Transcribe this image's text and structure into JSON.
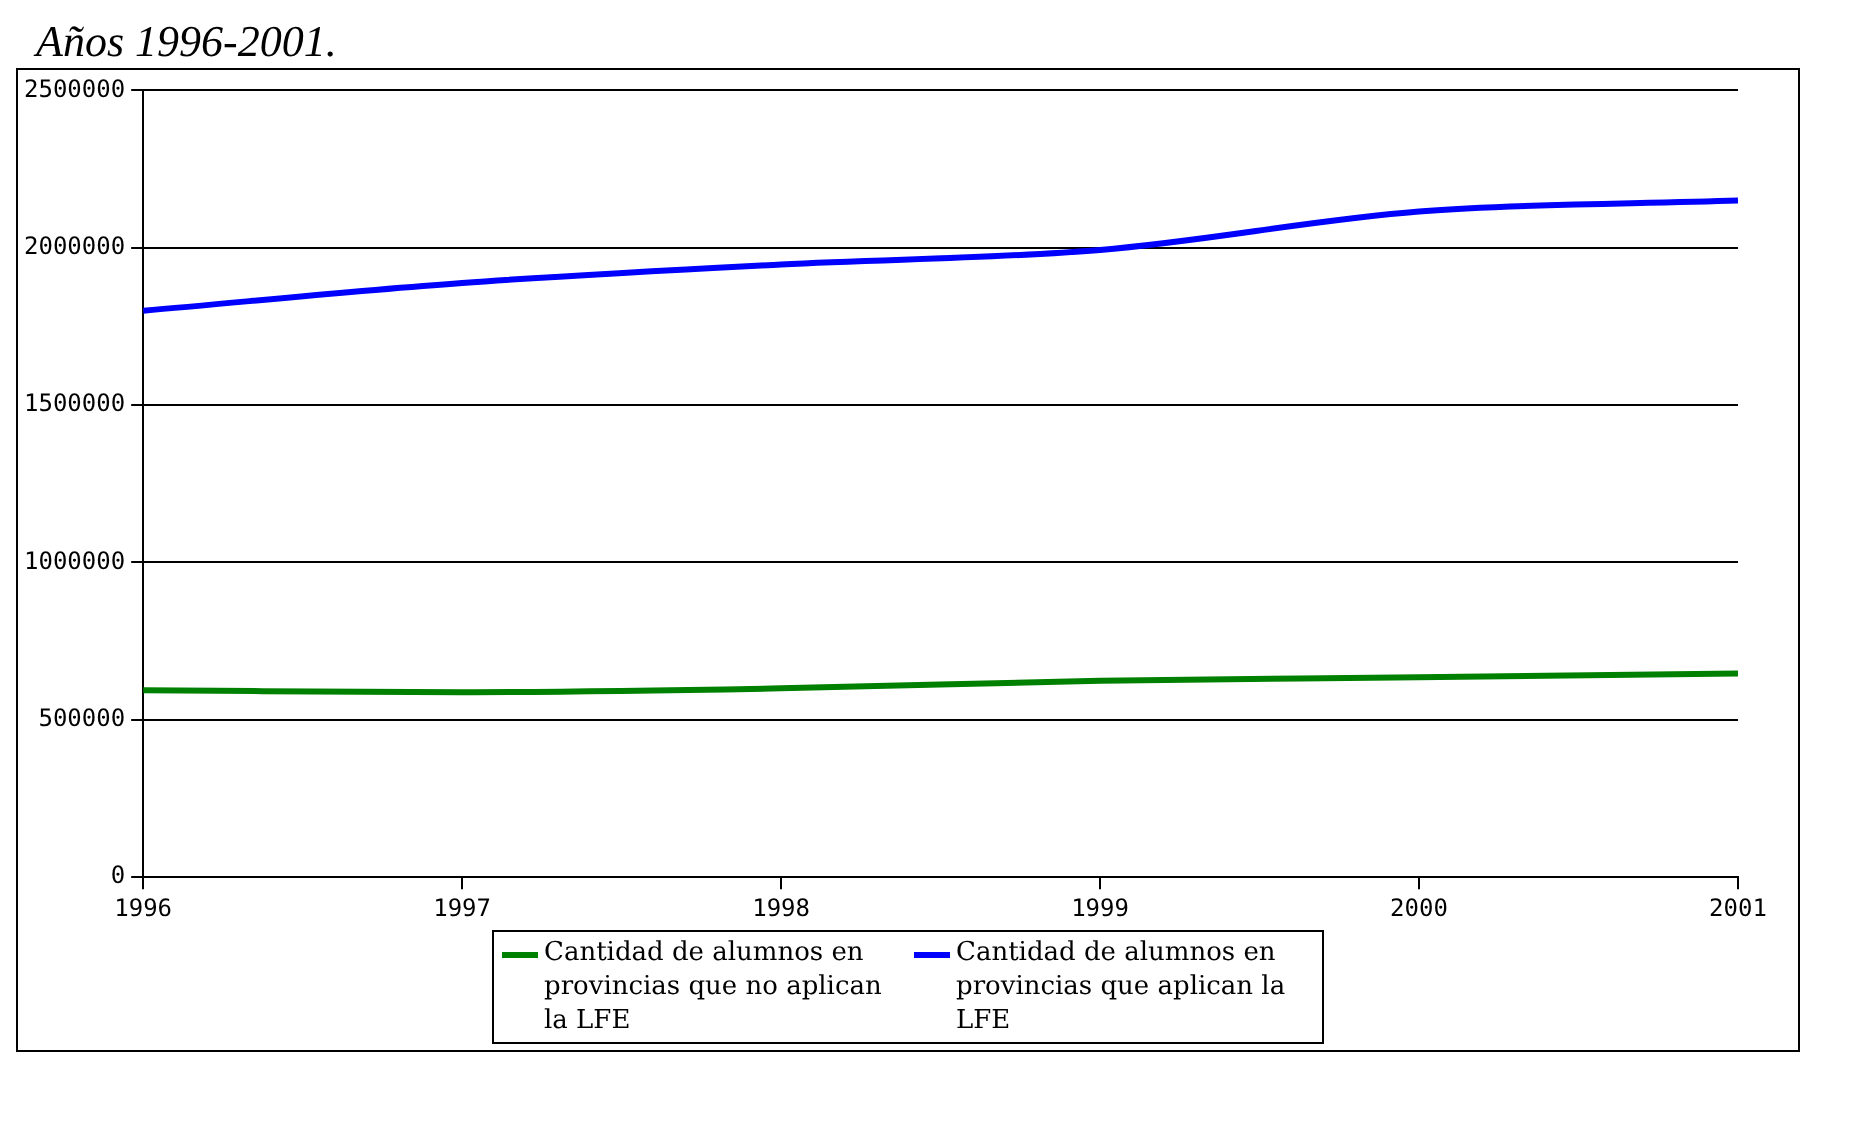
{
  "chart_data": {
    "type": "line",
    "title": "Años 1996-2001.",
    "x": [
      1996,
      1997,
      1998,
      1999,
      2000,
      2001
    ],
    "series": [
      {
        "name": "Cantidad de alumnos en provincias que no aplican la LFE",
        "color": "#008000",
        "values": [
          594000,
          588000,
          600000,
          624000,
          635000,
          647000
        ]
      },
      {
        "name": "Cantidad de alumnos en provincias que aplican la LFE",
        "color": "#0000ff",
        "values": [
          1800000,
          1888000,
          1947000,
          1993000,
          2115000,
          2150000
        ]
      }
    ],
    "xlim": [
      1996,
      2001
    ],
    "xticks": [
      1996,
      1997,
      1998,
      1999,
      2000,
      2001
    ],
    "ylim": [
      0,
      2500000
    ],
    "yticks": [
      0,
      500000,
      1000000,
      1500000,
      2000000,
      2500000
    ],
    "grid": "y",
    "legend": "bottom",
    "marker": "none",
    "line_style": "solid"
  }
}
